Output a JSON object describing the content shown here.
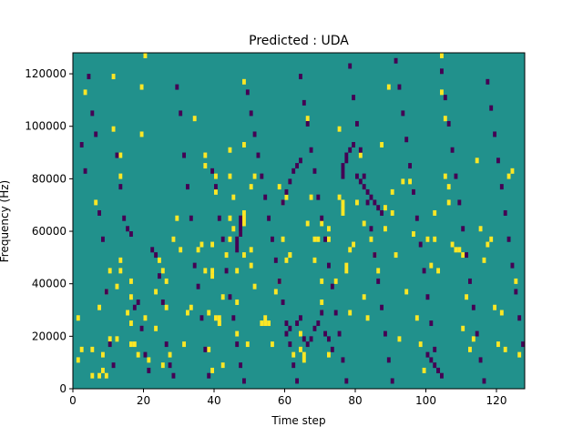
{
  "chart_data": {
    "type": "heatmap",
    "title": "Predicted : UDA",
    "xlabel": "Time step",
    "ylabel": "Frequency (Hz)",
    "xlim": [
      0,
      128
    ],
    "ylim": [
      0,
      128000
    ],
    "x_ticks": [
      0,
      20,
      40,
      60,
      80,
      100,
      120
    ],
    "x_tick_labels": [
      "0",
      "20",
      "40",
      "60",
      "80",
      "100",
      "120"
    ],
    "y_ticks": [
      0,
      20000,
      40000,
      60000,
      80000,
      100000,
      120000
    ],
    "y_tick_labels": [
      "0",
      "20000",
      "40000",
      "60000",
      "80000",
      "100000",
      "120000"
    ],
    "grid": false,
    "colormap": "viridis",
    "colors": {
      "background": "#21918c",
      "high": "#fde725",
      "low": "#440154"
    },
    "bins": {
      "time_bins": 128,
      "freq_bins": 64,
      "freq_bin_hz": 2000
    },
    "background_value": 0,
    "cells_high": [
      [
        1,
        13
      ],
      [
        1,
        5
      ],
      [
        2,
        7
      ],
      [
        3,
        56
      ],
      [
        5,
        7
      ],
      [
        5,
        2
      ],
      [
        6,
        35
      ],
      [
        7,
        15
      ],
      [
        7,
        2
      ],
      [
        8,
        6
      ],
      [
        8,
        3
      ],
      [
        9,
        18
      ],
      [
        9,
        2
      ],
      [
        10,
        22
      ],
      [
        10,
        9
      ],
      [
        11,
        59
      ],
      [
        11,
        49
      ],
      [
        12,
        19
      ],
      [
        12,
        9
      ],
      [
        13,
        44
      ],
      [
        13,
        40
      ],
      [
        13,
        24
      ],
      [
        13,
        22
      ],
      [
        15,
        14
      ],
      [
        16,
        20
      ],
      [
        16,
        17
      ],
      [
        16,
        12
      ],
      [
        16,
        8
      ],
      [
        17,
        8
      ],
      [
        18,
        6
      ],
      [
        19,
        57
      ],
      [
        19,
        48
      ],
      [
        20,
        63
      ],
      [
        20,
        13
      ],
      [
        21,
        5
      ],
      [
        23,
        18
      ],
      [
        23,
        11
      ],
      [
        24,
        24
      ],
      [
        25,
        22
      ],
      [
        25,
        4
      ],
      [
        26,
        20
      ],
      [
        26,
        15
      ],
      [
        27,
        6
      ],
      [
        28,
        28
      ],
      [
        29,
        32
      ],
      [
        30,
        26
      ],
      [
        31,
        8
      ],
      [
        32,
        14
      ],
      [
        33,
        15
      ],
      [
        34,
        51
      ],
      [
        35,
        26
      ],
      [
        36,
        27
      ],
      [
        37,
        44
      ],
      [
        37,
        42
      ],
      [
        37,
        22
      ],
      [
        38,
        14
      ],
      [
        38,
        7
      ],
      [
        39,
        27
      ],
      [
        39,
        22
      ],
      [
        39,
        21
      ],
      [
        39,
        3
      ],
      [
        40,
        40
      ],
      [
        40,
        37
      ],
      [
        40,
        13
      ],
      [
        41,
        13
      ],
      [
        41,
        12
      ],
      [
        41,
        12
      ],
      [
        42,
        17
      ],
      [
        42,
        4
      ],
      [
        43,
        25
      ],
      [
        44,
        45
      ],
      [
        44,
        40
      ],
      [
        44,
        32
      ],
      [
        44,
        28
      ],
      [
        45,
        36
      ],
      [
        45,
        30
      ],
      [
        46,
        22
      ],
      [
        46,
        16
      ],
      [
        46,
        10
      ],
      [
        47,
        29
      ],
      [
        48,
        58
      ],
      [
        48,
        46
      ],
      [
        48,
        33
      ],
      [
        48,
        32
      ],
      [
        48,
        31
      ],
      [
        48,
        25
      ],
      [
        49,
        8
      ],
      [
        50,
        38
      ],
      [
        50,
        26
      ],
      [
        50,
        23
      ],
      [
        51,
        40
      ],
      [
        51,
        19
      ],
      [
        53,
        12
      ],
      [
        54,
        12
      ],
      [
        54,
        13
      ],
      [
        55,
        12
      ],
      [
        56,
        8
      ],
      [
        57,
        18
      ],
      [
        58,
        20
      ],
      [
        58,
        38
      ],
      [
        59,
        28
      ],
      [
        59,
        35
      ],
      [
        60,
        24
      ],
      [
        60,
        36
      ],
      [
        61,
        25
      ],
      [
        61,
        25
      ],
      [
        62,
        6
      ],
      [
        64,
        10
      ],
      [
        64,
        7
      ],
      [
        65,
        5
      ],
      [
        65,
        6
      ],
      [
        66,
        31
      ],
      [
        66,
        51
      ],
      [
        67,
        36
      ],
      [
        68,
        24
      ],
      [
        68,
        28
      ],
      [
        69,
        28
      ],
      [
        70,
        31
      ],
      [
        70,
        20
      ],
      [
        70,
        16
      ],
      [
        72,
        28
      ],
      [
        72,
        30
      ],
      [
        72,
        6
      ],
      [
        74,
        20
      ],
      [
        75,
        36
      ],
      [
        75,
        49
      ],
      [
        76,
        33
      ],
      [
        76,
        34
      ],
      [
        76,
        35
      ],
      [
        77,
        22
      ],
      [
        77,
        23
      ],
      [
        78,
        14
      ],
      [
        78,
        26
      ],
      [
        79,
        27
      ],
      [
        80,
        35
      ],
      [
        81,
        44
      ],
      [
        82,
        17
      ],
      [
        82,
        31
      ],
      [
        83,
        13
      ],
      [
        84,
        28
      ],
      [
        85,
        25
      ],
      [
        86,
        22
      ],
      [
        87,
        46
      ],
      [
        88,
        30
      ],
      [
        88,
        34
      ],
      [
        89,
        57
      ],
      [
        90,
        33
      ],
      [
        90,
        37
      ],
      [
        91,
        25
      ],
      [
        92,
        9
      ],
      [
        93,
        39
      ],
      [
        94,
        18
      ],
      [
        95,
        39
      ],
      [
        96,
        29
      ],
      [
        97,
        13
      ],
      [
        98,
        8
      ],
      [
        99,
        3
      ],
      [
        100,
        28
      ],
      [
        101,
        23
      ],
      [
        102,
        28
      ],
      [
        102,
        33
      ],
      [
        103,
        22
      ],
      [
        104,
        63
      ],
      [
        104,
        56
      ],
      [
        105,
        51
      ],
      [
        105,
        40
      ],
      [
        106,
        38
      ],
      [
        106,
        35
      ],
      [
        107,
        27
      ],
      [
        108,
        26
      ],
      [
        109,
        26
      ],
      [
        110,
        25
      ],
      [
        110,
        11
      ],
      [
        111,
        17
      ],
      [
        112,
        7
      ],
      [
        113,
        9
      ],
      [
        114,
        43
      ],
      [
        115,
        30
      ],
      [
        116,
        24
      ],
      [
        117,
        27
      ],
      [
        118,
        28
      ],
      [
        119,
        15
      ],
      [
        120,
        8
      ],
      [
        121,
        14
      ],
      [
        122,
        7
      ],
      [
        123,
        40
      ],
      [
        124,
        41
      ],
      [
        125,
        20
      ],
      [
        126,
        6
      ]
    ],
    "cells_low": [
      [
        2,
        46
      ],
      [
        3,
        41
      ],
      [
        4,
        59
      ],
      [
        5,
        52
      ],
      [
        6,
        48
      ],
      [
        7,
        33
      ],
      [
        8,
        28
      ],
      [
        9,
        18
      ],
      [
        10,
        8
      ],
      [
        11,
        4
      ],
      [
        12,
        44
      ],
      [
        13,
        38
      ],
      [
        14,
        32
      ],
      [
        15,
        30
      ],
      [
        16,
        29
      ],
      [
        17,
        15
      ],
      [
        18,
        16
      ],
      [
        19,
        11
      ],
      [
        20,
        6
      ],
      [
        21,
        3
      ],
      [
        22,
        26
      ],
      [
        23,
        25
      ],
      [
        24,
        21
      ],
      [
        25,
        16
      ],
      [
        26,
        8
      ],
      [
        27,
        4
      ],
      [
        28,
        2
      ],
      [
        29,
        57
      ],
      [
        30,
        52
      ],
      [
        31,
        44
      ],
      [
        32,
        38
      ],
      [
        33,
        32
      ],
      [
        34,
        23
      ],
      [
        35,
        19
      ],
      [
        36,
        13
      ],
      [
        37,
        7
      ],
      [
        38,
        2
      ],
      [
        39,
        41
      ],
      [
        40,
        38
      ],
      [
        41,
        32
      ],
      [
        42,
        28
      ],
      [
        43,
        22
      ],
      [
        44,
        17
      ],
      [
        45,
        13
      ],
      [
        46,
        8
      ],
      [
        47,
        4
      ],
      [
        48,
        1
      ],
      [
        49,
        56
      ],
      [
        50,
        52
      ],
      [
        51,
        48
      ],
      [
        52,
        44
      ],
      [
        53,
        40
      ],
      [
        54,
        36
      ],
      [
        55,
        32
      ],
      [
        56,
        28
      ],
      [
        57,
        24
      ],
      [
        58,
        20
      ],
      [
        59,
        16
      ],
      [
        60,
        12
      ],
      [
        61,
        8
      ],
      [
        62,
        4
      ],
      [
        63,
        1
      ],
      [
        64,
        59
      ],
      [
        65,
        54
      ],
      [
        66,
        50
      ],
      [
        67,
        45
      ],
      [
        68,
        41
      ],
      [
        69,
        36
      ],
      [
        70,
        32
      ],
      [
        71,
        28
      ],
      [
        72,
        23
      ],
      [
        73,
        19
      ],
      [
        74,
        14
      ],
      [
        75,
        10
      ],
      [
        76,
        5
      ],
      [
        77,
        1
      ],
      [
        78,
        61
      ],
      [
        79,
        55
      ],
      [
        80,
        50
      ],
      [
        81,
        45
      ],
      [
        82,
        40
      ],
      [
        83,
        35
      ],
      [
        84,
        30
      ],
      [
        85,
        25
      ],
      [
        86,
        20
      ],
      [
        87,
        15
      ],
      [
        88,
        10
      ],
      [
        89,
        5
      ],
      [
        90,
        1
      ],
      [
        91,
        62
      ],
      [
        92,
        57
      ],
      [
        93,
        52
      ],
      [
        94,
        47
      ],
      [
        95,
        42
      ],
      [
        96,
        37
      ],
      [
        97,
        32
      ],
      [
        98,
        27
      ],
      [
        99,
        22
      ],
      [
        100,
        17
      ],
      [
        101,
        12
      ],
      [
        102,
        7
      ],
      [
        103,
        3
      ],
      [
        104,
        60
      ],
      [
        105,
        55
      ],
      [
        106,
        50
      ],
      [
        107,
        45
      ],
      [
        108,
        40
      ],
      [
        109,
        35
      ],
      [
        110,
        30
      ],
      [
        111,
        25
      ],
      [
        112,
        20
      ],
      [
        113,
        15
      ],
      [
        114,
        10
      ],
      [
        115,
        5
      ],
      [
        116,
        1
      ],
      [
        117,
        58
      ],
      [
        118,
        53
      ],
      [
        119,
        48
      ],
      [
        120,
        43
      ],
      [
        121,
        38
      ],
      [
        122,
        33
      ],
      [
        123,
        28
      ],
      [
        124,
        23
      ],
      [
        125,
        18
      ],
      [
        126,
        13
      ],
      [
        127,
        8
      ],
      [
        60,
        10
      ],
      [
        61,
        11
      ],
      [
        63,
        12
      ],
      [
        64,
        13
      ],
      [
        65,
        9
      ],
      [
        66,
        8
      ],
      [
        67,
        9
      ],
      [
        68,
        11
      ],
      [
        69,
        12
      ],
      [
        70,
        14
      ],
      [
        71,
        10
      ],
      [
        72,
        9
      ],
      [
        73,
        7
      ],
      [
        46,
        26
      ],
      [
        46,
        27
      ],
      [
        46,
        28
      ],
      [
        47,
        29
      ],
      [
        47,
        30
      ],
      [
        47,
        31
      ],
      [
        47,
        32
      ],
      [
        59,
        35
      ],
      [
        60,
        37
      ],
      [
        61,
        39
      ],
      [
        62,
        41
      ],
      [
        63,
        42
      ],
      [
        64,
        43
      ],
      [
        76,
        40
      ],
      [
        76,
        41
      ],
      [
        76,
        42
      ],
      [
        77,
        43
      ],
      [
        77,
        44
      ],
      [
        78,
        45
      ],
      [
        79,
        46
      ],
      [
        80,
        40
      ],
      [
        81,
        39
      ],
      [
        82,
        38
      ],
      [
        83,
        37
      ],
      [
        84,
        36
      ],
      [
        85,
        35
      ],
      [
        86,
        34
      ],
      [
        87,
        33
      ],
      [
        100,
        6
      ],
      [
        101,
        5
      ],
      [
        102,
        4
      ],
      [
        103,
        3
      ],
      [
        104,
        2
      ]
    ]
  }
}
